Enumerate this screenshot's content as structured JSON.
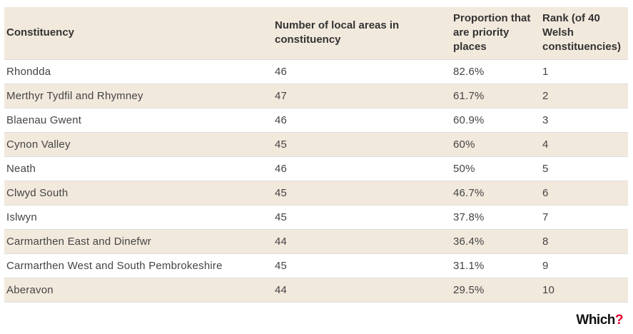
{
  "headers": {
    "constituency": "Constituency",
    "local_areas_line1": "Number of local areas in",
    "local_areas_line2": "constituency",
    "proportion_line1": "Proportion that",
    "proportion_line2": "are priority",
    "proportion_line3": "places",
    "rank_line1": "Rank (of 40",
    "rank_line2": "Welsh",
    "rank_line3": "constituencies)"
  },
  "rows": [
    {
      "constituency": "Rhondda",
      "areas": "46",
      "proportion": "82.6%",
      "rank": "1"
    },
    {
      "constituency": "Merthyr Tydfil and Rhymney",
      "areas": "47",
      "proportion": "61.7%",
      "rank": "2"
    },
    {
      "constituency": "Blaenau Gwent",
      "areas": "46",
      "proportion": "60.9%",
      "rank": "3"
    },
    {
      "constituency": "Cynon Valley",
      "areas": "45",
      "proportion": "60%",
      "rank": "4"
    },
    {
      "constituency": "Neath",
      "areas": "46",
      "proportion": "50%",
      "rank": "5"
    },
    {
      "constituency": "Clwyd South",
      "areas": "45",
      "proportion": "46.7%",
      "rank": "6"
    },
    {
      "constituency": "Islwyn",
      "areas": "45",
      "proportion": "37.8%",
      "rank": "7"
    },
    {
      "constituency": "Carmarthen East and Dinefwr",
      "areas": "44",
      "proportion": "36.4%",
      "rank": "8"
    },
    {
      "constituency": "Carmarthen West and South Pembrokeshire",
      "areas": "45",
      "proportion": "31.1%",
      "rank": "9"
    },
    {
      "constituency": "Aberavon",
      "areas": "44",
      "proportion": "29.5%",
      "rank": "10"
    }
  ],
  "logo": {
    "text": "Which",
    "mark": "?"
  },
  "colors": {
    "stripe": "#f2e9dd",
    "logo_accent": "#e4002b"
  }
}
